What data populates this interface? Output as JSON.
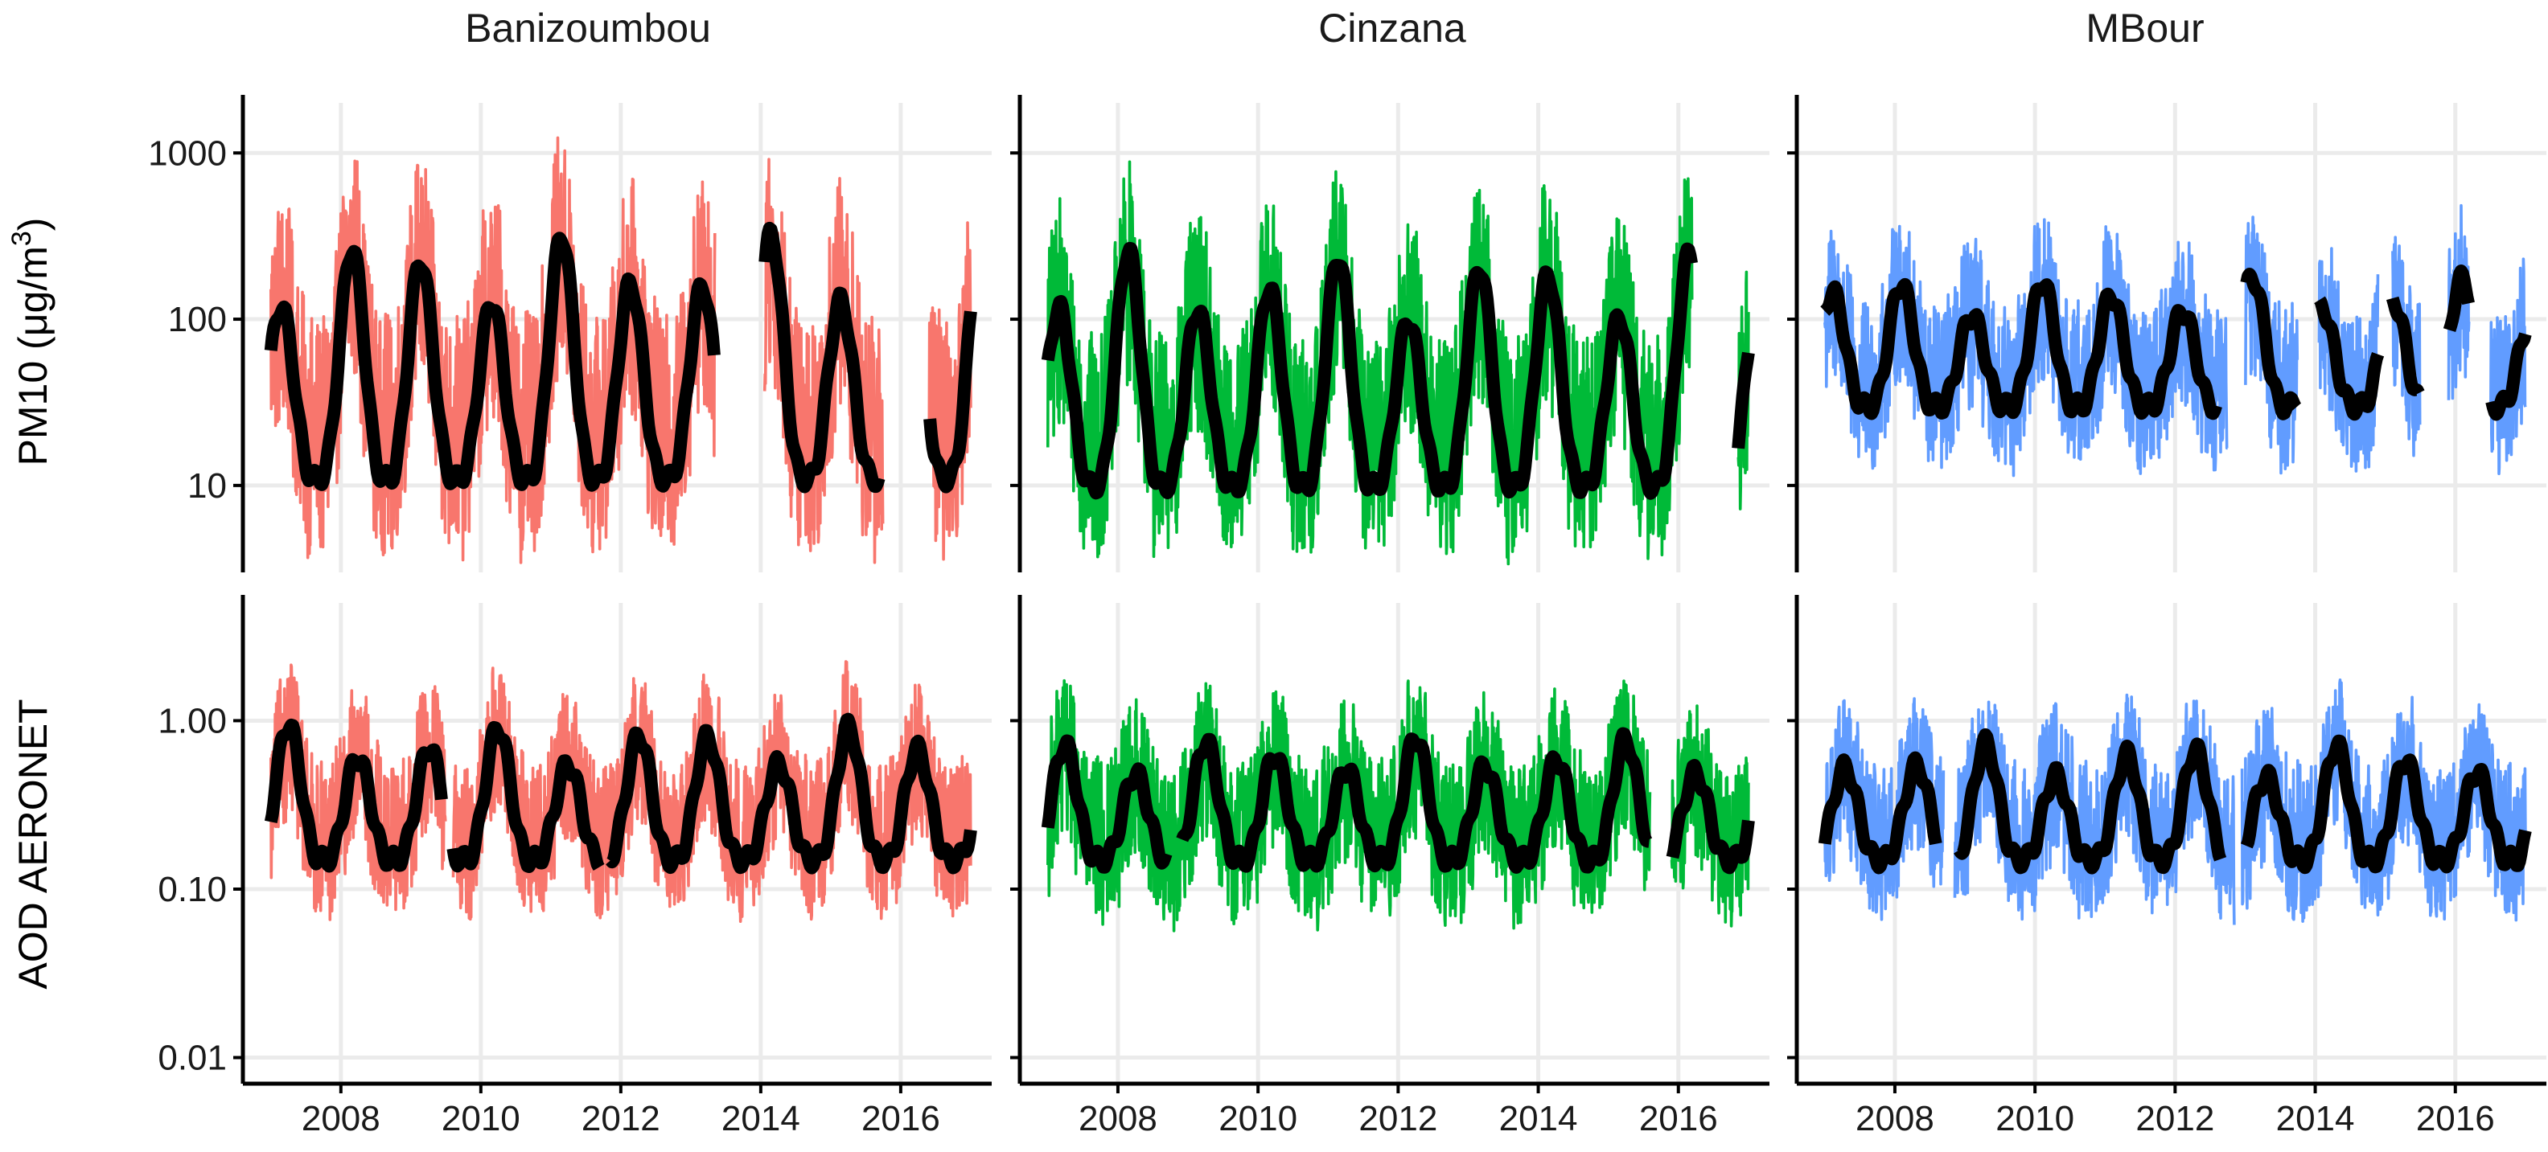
{
  "colors": {
    "Banizoumbou": "#F8766D",
    "Cinzana": "#00BA38",
    "MBour": "#619CFF",
    "smooth_line": "#000000",
    "grid": "#EBEBEB"
  },
  "chart_data": {
    "type": "line",
    "layout": "faceted grid, 2 rows x 3 columns",
    "sites": [
      "Banizoumbou",
      "Cinzana",
      "MBour"
    ],
    "rows": [
      {
        "key": "pm10",
        "ylabel_main": "PM10 (μg/m",
        "ylabel_sup": "3",
        "ylabel_tail": ")",
        "yscale": "log10",
        "ylim": [
          3,
          2000
        ],
        "yticks": [
          10,
          100,
          1000
        ],
        "ytick_labels": [
          "10",
          "100",
          "1000"
        ]
      },
      {
        "key": "aod",
        "ylabel": "AOD AERONET",
        "yscale": "log10",
        "ylim": [
          0.007,
          5
        ],
        "yticks": [
          0.01,
          0.1,
          1
        ],
        "ytick_labels": [
          "0.01",
          "0.10",
          "1.00"
        ]
      }
    ],
    "xlim": [
      2006.6,
      2017.3
    ],
    "xticks": [
      2008,
      2010,
      2012,
      2014,
      2016
    ],
    "xtick_labels": [
      "2008",
      "2010",
      "2012",
      "2014",
      "2016"
    ],
    "series": [
      {
        "site": "Banizoumbou",
        "row": "pm10",
        "band_low": 10,
        "band_high": 1200,
        "smooth_min": 11,
        "smooth_max": 330,
        "season_peak": 0.15,
        "gaps": [
          [
            2013.35,
            2014.05
          ],
          [
            2015.75,
            2016.4
          ]
        ],
        "smooth_gaps": [
          [
            2013.35,
            2014.05
          ],
          [
            2015.7,
            2016.4
          ]
        ]
      },
      {
        "site": "Cinzana",
        "row": "pm10",
        "band_low": 8,
        "band_high": 700,
        "smooth_min": 10,
        "smooth_max": 260,
        "season_peak": 0.15,
        "gaps": [
          [
            2016.2,
            2016.85
          ]
        ],
        "smooth_gaps": [
          [
            2016.2,
            2016.85
          ]
        ]
      },
      {
        "site": "MBour",
        "row": "pm10",
        "band_low": 15,
        "band_high": 400,
        "smooth_min": 30,
        "smooth_max": 180,
        "season_peak": 0.1,
        "gaps": [
          [
            2012.75,
            2013.0
          ],
          [
            2013.75,
            2014.05
          ],
          [
            2014.9,
            2015.1
          ],
          [
            2015.5,
            2015.9
          ],
          [
            2016.2,
            2016.5
          ]
        ],
        "smooth_gaps": [
          [
            2012.6,
            2013.0
          ],
          [
            2013.75,
            2014.05
          ],
          [
            2014.9,
            2015.1
          ],
          [
            2015.5,
            2015.9
          ],
          [
            2016.2,
            2016.5
          ]
        ]
      },
      {
        "site": "Banizoumbou",
        "row": "aod",
        "band_low": 0.1,
        "band_high": 2.0,
        "smooth_min": 0.15,
        "smooth_max": 0.95,
        "season_peak": 0.25,
        "gaps": [
          [
            2009.5,
            2009.6
          ]
        ],
        "smooth_gaps": [
          [
            2009.45,
            2009.6
          ],
          [
            2011.7,
            2011.85
          ]
        ]
      },
      {
        "site": "Cinzana",
        "row": "aod",
        "band_low": 0.07,
        "band_high": 1.8,
        "smooth_min": 0.15,
        "smooth_max": 0.8,
        "season_peak": 0.25,
        "gaps": [
          [
            2015.6,
            2015.9
          ]
        ],
        "smooth_gaps": [
          [
            2008.7,
            2008.9
          ],
          [
            2015.6,
            2015.9
          ]
        ]
      },
      {
        "site": "MBour",
        "row": "aod",
        "band_low": 0.08,
        "band_high": 1.6,
        "smooth_min": 0.15,
        "smooth_max": 0.75,
        "season_peak": 0.3,
        "gaps": [
          [
            2008.7,
            2008.85
          ],
          [
            2012.85,
            2012.95
          ]
        ],
        "smooth_gaps": [
          [
            2008.6,
            2008.9
          ],
          [
            2012.65,
            2013.0
          ]
        ]
      }
    ]
  }
}
